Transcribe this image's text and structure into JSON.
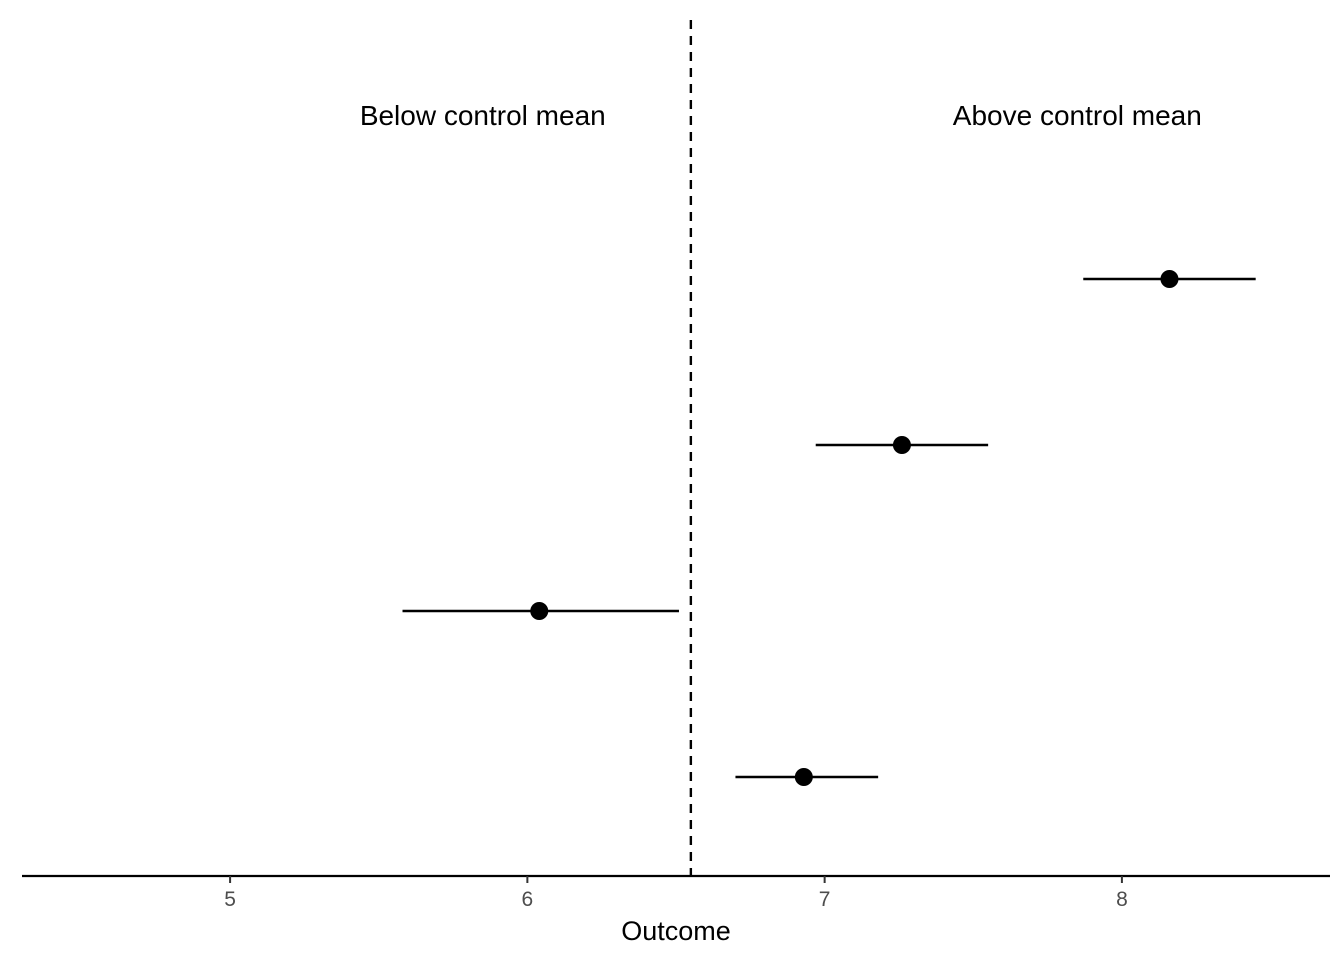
{
  "chart_data": {
    "type": "scatter",
    "subtype": "point-range",
    "title": "",
    "xlabel": "Outcome",
    "ylabel": "",
    "xlim": [
      4.3,
      8.7
    ],
    "x_ticks": [
      5,
      6,
      7,
      8
    ],
    "x_tick_labels": [
      "5",
      "6",
      "7",
      "8"
    ],
    "grid": false,
    "legend": "none",
    "reference_line": {
      "x": 6.55,
      "style": "dashed"
    },
    "annotations": [
      "Below control mean",
      "Above control mean"
    ],
    "points": [
      {
        "estimate": 8.16,
        "low": 7.87,
        "high": 8.45
      },
      {
        "estimate": 7.26,
        "low": 6.97,
        "high": 7.55
      },
      {
        "estimate": 6.04,
        "low": 5.58,
        "high": 6.51
      },
      {
        "estimate": 6.93,
        "low": 6.7,
        "high": 7.18
      }
    ],
    "colors": {
      "mark": "#000000",
      "tick_text": "#4d4d4d"
    }
  }
}
